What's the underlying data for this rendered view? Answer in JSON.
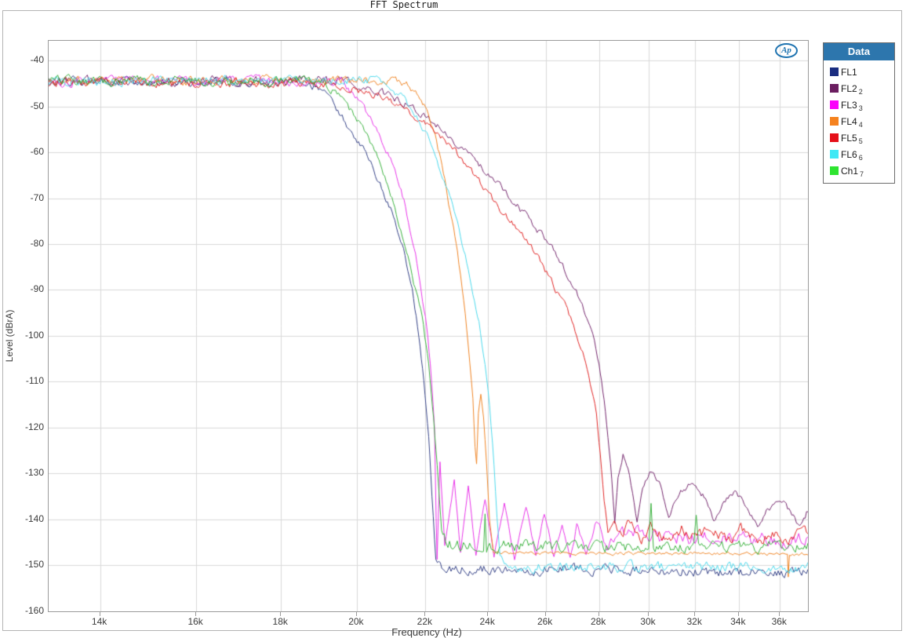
{
  "window": {
    "title": "FFT Spectrum"
  },
  "logo": {
    "text": "Ap"
  },
  "axes": {
    "x": {
      "label": "Frequency (Hz)",
      "scale": "log",
      "min_hz": 13034,
      "max_hz": 37430,
      "ticks": [
        {
          "hz": 14000,
          "label": "14k"
        },
        {
          "hz": 16000,
          "label": "16k"
        },
        {
          "hz": 18000,
          "label": "18k"
        },
        {
          "hz": 20000,
          "label": "20k"
        },
        {
          "hz": 22000,
          "label": "22k"
        },
        {
          "hz": 24000,
          "label": "24k"
        },
        {
          "hz": 26000,
          "label": "26k"
        },
        {
          "hz": 28000,
          "label": "28k"
        },
        {
          "hz": 30000,
          "label": "30k"
        },
        {
          "hz": 32000,
          "label": "32k"
        },
        {
          "hz": 34000,
          "label": "34k"
        },
        {
          "hz": 36000,
          "label": "36k"
        }
      ]
    },
    "y": {
      "label": "Level (dBrA)",
      "top_db": -35.7,
      "bottom_db": -160.05,
      "ticks": [
        -40,
        -50,
        -60,
        -70,
        -80,
        -90,
        -100,
        -110,
        -120,
        -130,
        -140,
        -150,
        -160
      ]
    }
  },
  "legend": {
    "header": "Data",
    "items": [
      {
        "label": "FL1",
        "sub": "",
        "color": "#1a2d80"
      },
      {
        "label": "FL2",
        "sub": "2",
        "color": "#6b1e60"
      },
      {
        "label": "FL3",
        "sub": "3",
        "color": "#fb00fb"
      },
      {
        "label": "FL4",
        "sub": "4",
        "color": "#f5821f"
      },
      {
        "label": "FL5",
        "sub": "5",
        "color": "#e51019"
      },
      {
        "label": "FL6",
        "sub": "6",
        "color": "#3fe8f5"
      },
      {
        "label": "Ch1",
        "sub": "7",
        "color": "#2ee430"
      }
    ]
  },
  "colors": {
    "grid": "#d9d9d9",
    "frame": "#9b9b9b",
    "legend_header_bg": "#2d76ad",
    "logo_blue": "#1e73b0"
  },
  "chart_data": {
    "type": "line",
    "title": "FFT Spectrum",
    "xlabel": "Frequency (Hz)",
    "ylabel": "Level (dBrA)",
    "x_scale": "log",
    "x_range_hz": [
      13034,
      37430
    ],
    "y_top_db": -35.7,
    "y_bottom_db": -160.05,
    "grid": true,
    "legend_position": "right",
    "note": "points are [freq_kHz, level_dBrA, noise_jitter_dB]; all traces sit near -44.5 dBrA passband then roll off to individual noise floors",
    "series": [
      {
        "name": "FL1",
        "color": "#323f85",
        "points": [
          [
            13.0,
            -44.6,
            1.2
          ],
          [
            18.6,
            -44.6,
            1.1
          ],
          [
            19.0,
            -46.2,
            1.0
          ],
          [
            19.4,
            -50,
            0.9
          ],
          [
            19.8,
            -55,
            0.9
          ],
          [
            20.3,
            -61,
            0.9
          ],
          [
            20.7,
            -67.5,
            0.9
          ],
          [
            21.0,
            -73,
            0.8
          ],
          [
            21.3,
            -80,
            0.8
          ],
          [
            21.6,
            -90,
            0.8
          ],
          [
            21.8,
            -100,
            0.7
          ],
          [
            21.95,
            -110,
            0.6
          ],
          [
            22.1,
            -122,
            0.5
          ],
          [
            22.2,
            -135,
            0.5
          ],
          [
            22.32,
            -149,
            0.7
          ],
          [
            22.6,
            -150.8,
            1.3
          ],
          [
            28.0,
            -150.9,
            1.3
          ],
          [
            32.0,
            -151.4,
            1.3
          ],
          [
            37.43,
            -151.6,
            1.3
          ]
        ]
      },
      {
        "name": "FL2",
        "color": "#73256c",
        "points": [
          [
            13.0,
            -44.5,
            1.2
          ],
          [
            19.8,
            -44.5,
            1.2
          ],
          [
            20.5,
            -46.5,
            1.0
          ],
          [
            21.3,
            -48.9,
            1.0
          ],
          [
            22.0,
            -52,
            1.0
          ],
          [
            22.7,
            -56,
            1.0
          ],
          [
            23.3,
            -60,
            1.0
          ],
          [
            24.0,
            -64.5,
            1.0
          ],
          [
            24.6,
            -69,
            0.9
          ],
          [
            25.2,
            -73,
            0.9
          ],
          [
            25.8,
            -77.5,
            0.9
          ],
          [
            26.4,
            -82.5,
            0.9
          ],
          [
            26.9,
            -87.5,
            0.8
          ],
          [
            27.3,
            -92.5,
            0.8
          ],
          [
            27.7,
            -98.5,
            0.7
          ],
          [
            28.0,
            -106,
            0.6
          ],
          [
            28.2,
            -114,
            0.5
          ],
          [
            28.35,
            -122,
            0.5
          ],
          [
            28.5,
            -131,
            0.45
          ],
          [
            28.62,
            -140.5,
            0.4
          ],
          [
            28.75,
            -131,
            0.5
          ],
          [
            28.95,
            -126,
            0.6
          ],
          [
            29.15,
            -128.5,
            0.6
          ],
          [
            29.4,
            -136.5,
            0.5
          ],
          [
            29.52,
            -140.8,
            0.45
          ],
          [
            29.75,
            -133,
            0.6
          ],
          [
            30.1,
            -129.5,
            0.7
          ],
          [
            30.5,
            -132.5,
            0.7
          ],
          [
            30.85,
            -139.5,
            0.5
          ],
          [
            31.3,
            -134,
            0.8
          ],
          [
            31.9,
            -131.8,
            0.8
          ],
          [
            32.4,
            -135,
            0.8
          ],
          [
            32.85,
            -140.5,
            0.6
          ],
          [
            33.3,
            -136,
            0.8
          ],
          [
            33.9,
            -134.2,
            0.8
          ],
          [
            34.4,
            -137.5,
            0.8
          ],
          [
            34.9,
            -141.5,
            0.6
          ],
          [
            35.4,
            -137.5,
            0.9
          ],
          [
            36.1,
            -135.8,
            0.9
          ],
          [
            36.6,
            -138.5,
            0.9
          ],
          [
            37.0,
            -141.5,
            0.8
          ],
          [
            37.43,
            -138,
            0.9
          ]
        ]
      },
      {
        "name": "FL3",
        "color": "#e833e8",
        "points": [
          [
            13.0,
            -44.5,
            1.2
          ],
          [
            19.6,
            -44.5,
            1.2
          ],
          [
            20.0,
            -48,
            1.0
          ],
          [
            20.5,
            -54,
            0.9
          ],
          [
            21.0,
            -62,
            0.9
          ],
          [
            21.4,
            -72,
            0.9
          ],
          [
            21.7,
            -82,
            0.8
          ],
          [
            22.0,
            -96,
            0.7
          ],
          [
            22.15,
            -106,
            0.6
          ],
          [
            22.28,
            -120,
            0.5
          ],
          [
            22.33,
            -140,
            0.4
          ],
          [
            22.36,
            -149,
            0.3
          ],
          [
            22.45,
            -127.5,
            0.6
          ],
          [
            22.6,
            -146,
            0.5
          ],
          [
            22.9,
            -131.5,
            0.6
          ],
          [
            23.1,
            -147,
            0.5
          ],
          [
            23.35,
            -132.5,
            0.6
          ],
          [
            23.6,
            -148,
            0.5
          ],
          [
            23.9,
            -135.8,
            0.6
          ],
          [
            24.2,
            -148,
            0.5
          ],
          [
            24.55,
            -136.5,
            0.7
          ],
          [
            24.9,
            -148.5,
            0.6
          ],
          [
            25.3,
            -136.8,
            0.7
          ],
          [
            25.65,
            -148,
            0.6
          ],
          [
            25.95,
            -138.5,
            0.7
          ],
          [
            26.3,
            -148,
            0.7
          ],
          [
            26.6,
            -141,
            0.8
          ],
          [
            26.9,
            -147.5,
            0.8
          ],
          [
            27.15,
            -141.4,
            0.9
          ],
          [
            27.5,
            -147,
            0.9
          ],
          [
            27.9,
            -140.2,
            1.0
          ],
          [
            28.3,
            -146,
            1.2
          ],
          [
            28.8,
            -142.5,
            1.6
          ],
          [
            30.0,
            -143.5,
            1.8
          ],
          [
            32.0,
            -144,
            1.8
          ],
          [
            34.0,
            -144.5,
            1.8
          ],
          [
            37.43,
            -144.5,
            1.8
          ]
        ]
      },
      {
        "name": "FL4",
        "color": "#ef8424",
        "points": [
          [
            13.0,
            -44.3,
            1.2
          ],
          [
            21.2,
            -44.3,
            1.1
          ],
          [
            21.7,
            -46.5,
            0.9
          ],
          [
            22.0,
            -50,
            0.8
          ],
          [
            22.3,
            -56,
            0.8
          ],
          [
            22.6,
            -66,
            0.8
          ],
          [
            22.8,
            -74,
            0.7
          ],
          [
            23.0,
            -82,
            0.7
          ],
          [
            23.2,
            -92,
            0.6
          ],
          [
            23.35,
            -102,
            0.5
          ],
          [
            23.5,
            -114,
            0.5
          ],
          [
            23.57,
            -124,
            0.4
          ],
          [
            23.62,
            -128,
            0.4
          ],
          [
            23.68,
            -117,
            0.4
          ],
          [
            23.76,
            -112.5,
            0.4
          ],
          [
            23.85,
            -117.5,
            0.4
          ],
          [
            23.95,
            -128,
            0.4
          ],
          [
            24.05,
            -140,
            0.4
          ],
          [
            24.18,
            -147.3,
            0.4
          ],
          [
            28.0,
            -147.4,
            0.45
          ],
          [
            33.0,
            -147.5,
            0.45
          ],
          [
            36.38,
            -147.5,
            0.45
          ],
          [
            36.42,
            -152.5,
            0.3
          ],
          [
            36.48,
            -147.5,
            0.45
          ],
          [
            37.43,
            -147.6,
            0.5
          ]
        ]
      },
      {
        "name": "FL5",
        "color": "#e02424",
        "points": [
          [
            13.0,
            -44.8,
            1.2
          ],
          [
            19.3,
            -45,
            1.1
          ],
          [
            20.0,
            -46.5,
            1.0
          ],
          [
            21.0,
            -49,
            0.9
          ],
          [
            22.0,
            -53.5,
            0.9
          ],
          [
            22.8,
            -58.5,
            0.9
          ],
          [
            23.5,
            -64.5,
            0.9
          ],
          [
            24.3,
            -71.5,
            0.9
          ],
          [
            25.0,
            -76.5,
            0.9
          ],
          [
            25.7,
            -82.5,
            0.9
          ],
          [
            26.2,
            -88,
            0.9
          ],
          [
            26.8,
            -94.5,
            0.8
          ],
          [
            27.2,
            -100.5,
            0.8
          ],
          [
            27.6,
            -108,
            0.7
          ],
          [
            27.9,
            -117,
            0.6
          ],
          [
            28.05,
            -126,
            0.5
          ],
          [
            28.2,
            -136,
            0.5
          ],
          [
            28.35,
            -143,
            0.8
          ],
          [
            28.6,
            -141.5,
            1.2
          ],
          [
            28.9,
            -142.5,
            1.4
          ],
          [
            29.3,
            -140.8,
            1.4
          ],
          [
            29.7,
            -144.5,
            1.4
          ],
          [
            30.2,
            -141.5,
            1.5
          ],
          [
            30.8,
            -144.8,
            1.5
          ],
          [
            31.4,
            -141.8,
            1.5
          ],
          [
            32.0,
            -144.5,
            1.5
          ],
          [
            32.7,
            -142,
            1.5
          ],
          [
            33.4,
            -144.8,
            1.5
          ],
          [
            34.1,
            -142.5,
            1.5
          ],
          [
            34.9,
            -145,
            1.5
          ],
          [
            35.7,
            -142.8,
            1.5
          ],
          [
            36.5,
            -144.5,
            1.5
          ],
          [
            37.43,
            -142.5,
            1.5
          ]
        ]
      },
      {
        "name": "FL6",
        "color": "#4cd9ec",
        "points": [
          [
            13.0,
            -44.3,
            1.2
          ],
          [
            20.6,
            -44.3,
            1.1
          ],
          [
            21.0,
            -46,
            1.0
          ],
          [
            21.5,
            -49.5,
            0.9
          ],
          [
            22.0,
            -55.5,
            0.9
          ],
          [
            22.4,
            -62.5,
            0.9
          ],
          [
            22.85,
            -72,
            0.8
          ],
          [
            23.1,
            -78,
            0.8
          ],
          [
            23.4,
            -87,
            0.8
          ],
          [
            23.7,
            -97,
            0.7
          ],
          [
            23.9,
            -106,
            0.7
          ],
          [
            24.05,
            -115,
            0.6
          ],
          [
            24.2,
            -128,
            0.5
          ],
          [
            24.3,
            -139,
            0.5
          ],
          [
            24.4,
            -148,
            0.8
          ],
          [
            24.6,
            -150.3,
            1.3
          ],
          [
            30.0,
            -150.4,
            1.3
          ],
          [
            37.43,
            -150.6,
            1.4
          ]
        ]
      },
      {
        "name": "Ch1",
        "color": "#38b13c",
        "points": [
          [
            13.0,
            -44.5,
            1.2
          ],
          [
            19.0,
            -44.5,
            1.2
          ],
          [
            19.5,
            -47.5,
            1.0
          ],
          [
            20.0,
            -52.5,
            0.9
          ],
          [
            20.5,
            -59.5,
            0.9
          ],
          [
            21.0,
            -69.5,
            0.9
          ],
          [
            21.3,
            -77.5,
            0.8
          ],
          [
            21.6,
            -87,
            0.8
          ],
          [
            21.9,
            -96,
            0.8
          ],
          [
            22.1,
            -106,
            0.7
          ],
          [
            22.25,
            -118,
            0.6
          ],
          [
            22.4,
            -132,
            0.5
          ],
          [
            22.5,
            -143,
            0.8
          ],
          [
            22.7,
            -145.5,
            1.6
          ],
          [
            23.85,
            -145.8,
            1.4
          ],
          [
            23.9,
            -138.5,
            0.5
          ],
          [
            23.95,
            -145.8,
            1.4
          ],
          [
            26.0,
            -145.8,
            1.6
          ],
          [
            30.0,
            -146,
            1.4
          ],
          [
            30.1,
            -136.5,
            0.4
          ],
          [
            30.2,
            -146,
            1.4
          ],
          [
            31.95,
            -146,
            1.4
          ],
          [
            32.05,
            -139,
            0.4
          ],
          [
            32.15,
            -146,
            1.4
          ],
          [
            37.43,
            -146,
            1.5
          ]
        ]
      }
    ]
  }
}
